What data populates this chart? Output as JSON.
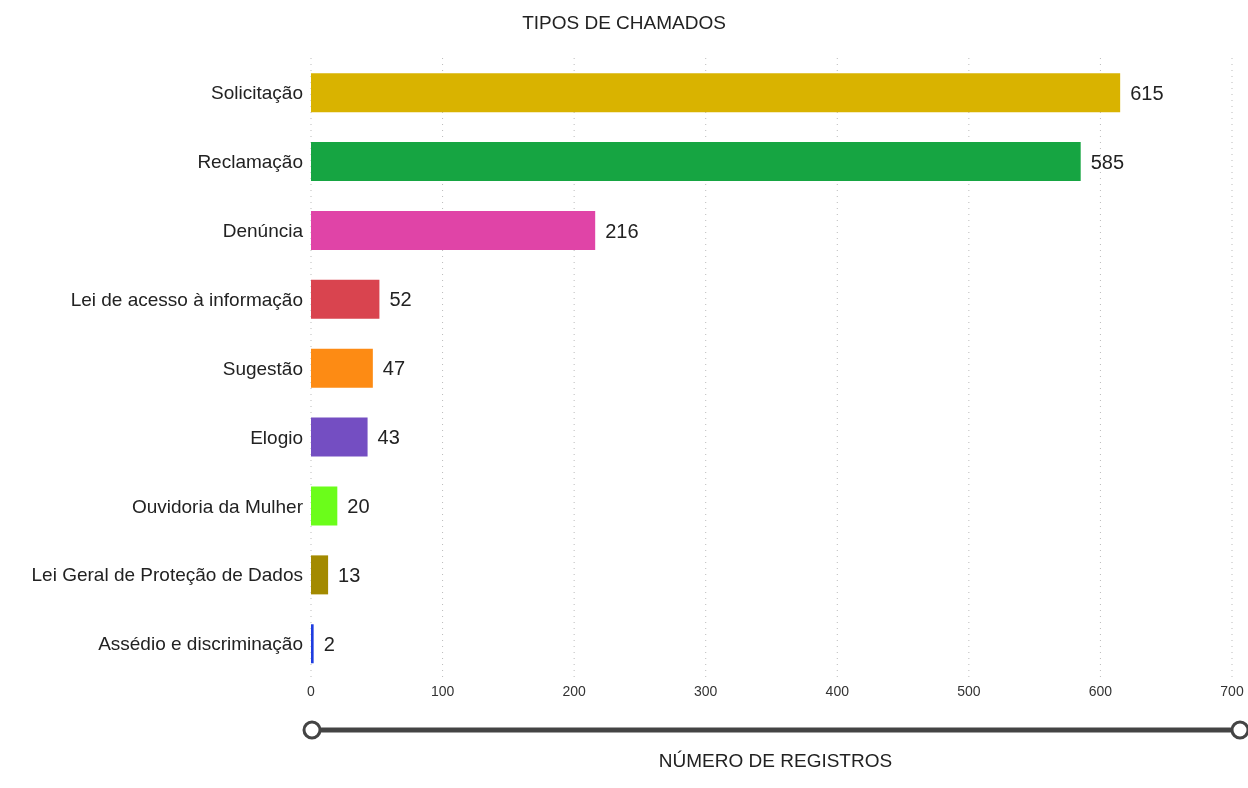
{
  "chart_data": {
    "type": "bar",
    "orientation": "horizontal",
    "title": "TIPOS DE CHAMADOS",
    "xlabel": "NÚMERO DE REGISTROS",
    "categories": [
      "Solicitação",
      "Reclamação",
      "Denúncia",
      "Lei de acesso à informação",
      "Sugestão",
      "Elogio",
      "Ouvidoria da Mulher",
      "Lei Geral de Proteção de Dados",
      "Assédio e discriminação"
    ],
    "values": [
      615,
      585,
      216,
      52,
      47,
      43,
      20,
      13,
      2
    ],
    "colors": [
      "#d9b300",
      "#16a542",
      "#e044a7",
      "#d9444f",
      "#fd8b14",
      "#744ec2",
      "#6bfd1a",
      "#a38a00",
      "#1f3de0"
    ],
    "xlim": [
      0,
      700
    ],
    "xticks": [
      0,
      100,
      200,
      300,
      400,
      500,
      600,
      700
    ],
    "grid": "x",
    "data_labels": true
  }
}
